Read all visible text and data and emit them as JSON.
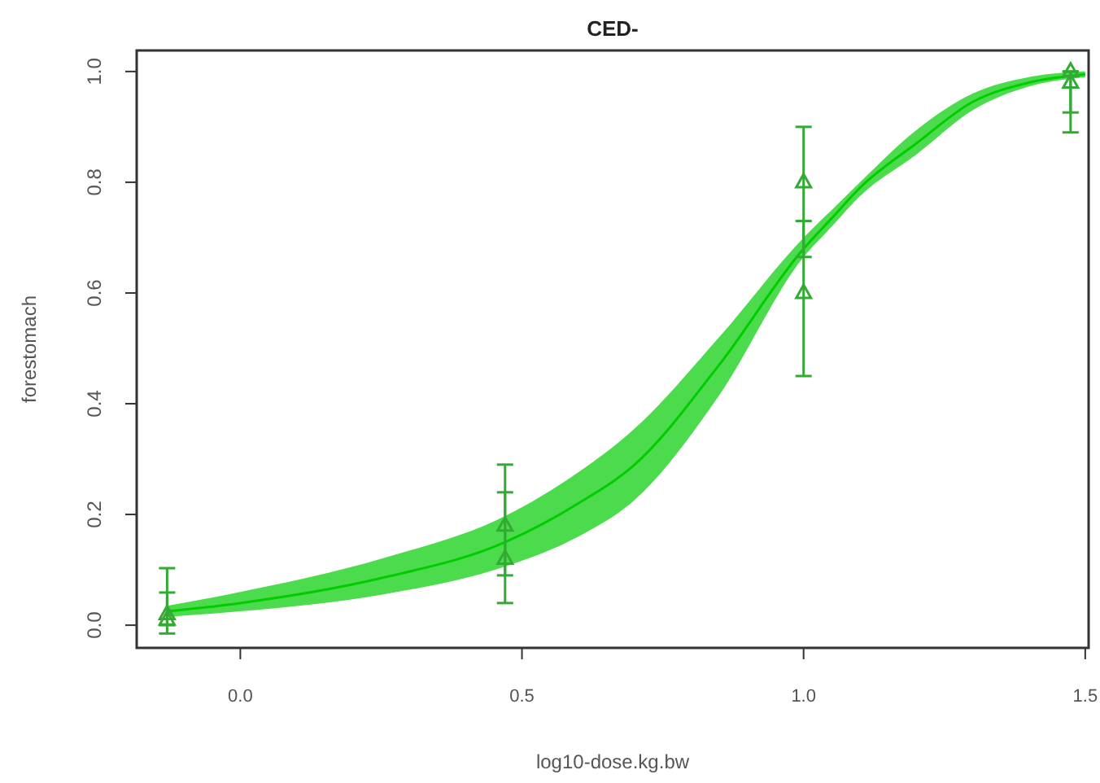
{
  "chart_data": {
    "type": "scatter",
    "title": "CED-",
    "xlabel": "log10-dose.kg.bw",
    "ylabel": "forestomach",
    "xlim": [
      -0.184,
      1.506
    ],
    "ylim": [
      -0.041,
      1.038
    ],
    "xticks": [
      {
        "value": 0,
        "label": "0.0"
      },
      0.5,
      {
        "value": 1,
        "label": "1.0"
      },
      1.5
    ],
    "yticks": [
      {
        "value": 0,
        "label": "0.0"
      },
      0.2,
      0.4,
      0.6,
      0.8,
      {
        "value": 1,
        "label": "1.0"
      }
    ],
    "series": [
      {
        "type": "line",
        "color": "#00cc00",
        "x": [
          -0.13,
          0,
          0.25,
          0.47,
          0.6,
          0.7,
          0.85,
          1.0,
          1.05,
          1.1,
          1.2,
          1.3,
          1.4,
          1.5
        ],
        "values": [
          0.025,
          0.04,
          0.085,
          0.15,
          0.22,
          0.29,
          0.47,
          0.68,
          0.735,
          0.79,
          0.87,
          0.945,
          0.98,
          0.995
        ],
        "lower": [
          0.015,
          0.025,
          0.055,
          0.106,
          0.16,
          0.226,
          0.415,
          0.665,
          0.72,
          0.775,
          0.85,
          0.93,
          0.973,
          0.99
        ],
        "upper": [
          0.035,
          0.06,
          0.12,
          0.197,
          0.276,
          0.355,
          0.52,
          0.7,
          0.75,
          0.8,
          0.894,
          0.96,
          0.99,
          1.0
        ]
      },
      {
        "type": "scatter",
        "color": "#33aa33",
        "marker": "triangle",
        "x": [
          -0.13,
          -0.13,
          0.47,
          0.47,
          1.0,
          1.0,
          1.474,
          1.474
        ],
        "values": [
          0.02,
          0.01,
          0.18,
          0.12,
          0.8,
          0.6,
          1.0,
          0.98
        ],
        "errors": [
          [
            -0.015,
            0.103
          ],
          [
            0.0,
            0.059
          ],
          [
            0.09,
            0.29
          ],
          [
            0.04,
            0.24
          ],
          [
            0.665,
            0.9
          ],
          [
            0.45,
            0.73
          ],
          [
            0.926,
            1.0
          ],
          [
            0.89,
            1.0
          ]
        ]
      }
    ]
  }
}
